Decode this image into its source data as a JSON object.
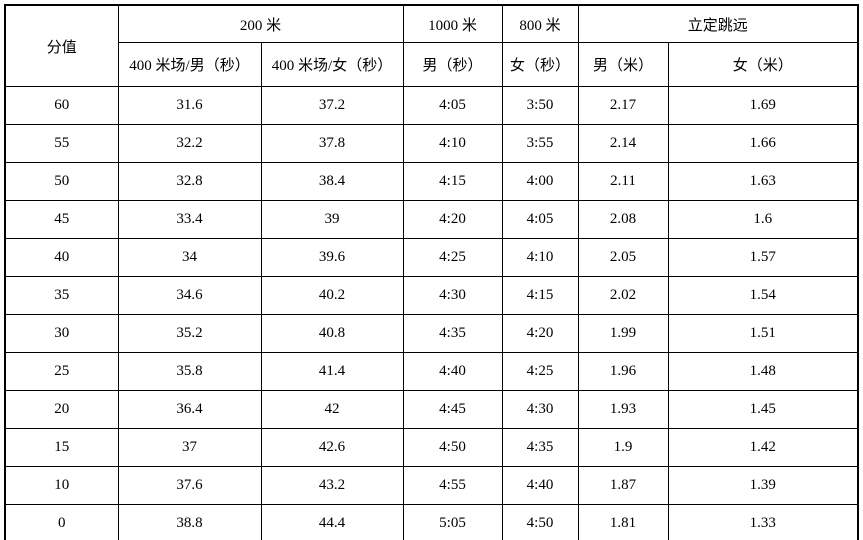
{
  "colors": {
    "border": "#000000",
    "background": "#ffffff",
    "text": "#000000"
  },
  "table": {
    "corner_label": "分值",
    "groups": [
      {
        "label": "200 米"
      },
      {
        "label": "1000 米"
      },
      {
        "label": "800 米"
      },
      {
        "label": "立定跳远"
      }
    ],
    "subheaders": [
      "400 米场/男（秒）",
      "400 米场/女（秒）",
      "男（秒）",
      "女（秒）",
      "男（米）",
      "女（米）"
    ],
    "rows": [
      {
        "score": "60",
        "values": [
          "31.6",
          "37.2",
          "4:05",
          "3:50",
          "2.17",
          "1.69"
        ]
      },
      {
        "score": "55",
        "values": [
          "32.2",
          "37.8",
          "4:10",
          "3:55",
          "2.14",
          "1.66"
        ]
      },
      {
        "score": "50",
        "values": [
          "32.8",
          "38.4",
          "4:15",
          "4:00",
          "2.11",
          "1.63"
        ]
      },
      {
        "score": "45",
        "values": [
          "33.4",
          "39",
          "4:20",
          "4:05",
          "2.08",
          "1.6"
        ]
      },
      {
        "score": "40",
        "values": [
          "34",
          "39.6",
          "4:25",
          "4:10",
          "2.05",
          "1.57"
        ]
      },
      {
        "score": "35",
        "values": [
          "34.6",
          "40.2",
          "4:30",
          "4:15",
          "2.02",
          "1.54"
        ]
      },
      {
        "score": "30",
        "values": [
          "35.2",
          "40.8",
          "4:35",
          "4:20",
          "1.99",
          "1.51"
        ]
      },
      {
        "score": "25",
        "values": [
          "35.8",
          "41.4",
          "4:40",
          "4:25",
          "1.96",
          "1.48"
        ]
      },
      {
        "score": "20",
        "values": [
          "36.4",
          "42",
          "4:45",
          "4:30",
          "1.93",
          "1.45"
        ]
      },
      {
        "score": "15",
        "values": [
          "37",
          "42.6",
          "4:50",
          "4:35",
          "1.9",
          "1.42"
        ]
      },
      {
        "score": "10",
        "values": [
          "37.6",
          "43.2",
          "4:55",
          "4:40",
          "1.87",
          "1.39"
        ]
      },
      {
        "score": "0",
        "values": [
          "38.8",
          "44.4",
          "5:05",
          "4:50",
          "1.81",
          "1.33"
        ]
      }
    ]
  }
}
